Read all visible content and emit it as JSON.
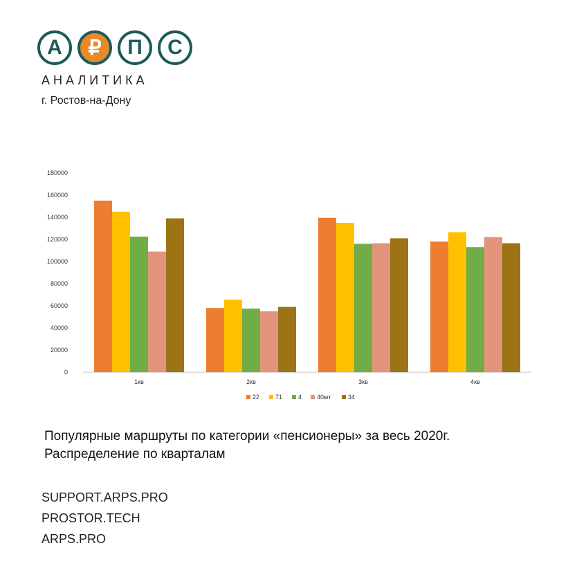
{
  "brand": {
    "letters": [
      "А",
      "₽",
      "П",
      "С"
    ],
    "subtitle": "АНАЛИТИКА",
    "city": "г. Ростов-на-Дону",
    "colors": {
      "teal": "#1d5a5a",
      "orange": "#e8892a"
    }
  },
  "caption": {
    "line1": "Популярные маршруты по категории «пенсионеры» за весь 2020г.",
    "line2": "Распределение по кварталам"
  },
  "links": [
    "SUPPORT.ARPS.PRO",
    "PROSTOR.TECH",
    "ARPS.PRO"
  ],
  "chart_data": {
    "type": "bar",
    "categories": [
      "1кв",
      "2кв",
      "3кв",
      "4кв"
    ],
    "series": [
      {
        "name": "22",
        "color": "#ed7d31",
        "values": [
          155000,
          58000,
          139500,
          118000
        ]
      },
      {
        "name": "71",
        "color": "#ffc000",
        "values": [
          145000,
          65500,
          135000,
          126500
        ]
      },
      {
        "name": "4",
        "color": "#70ad47",
        "values": [
          122500,
          57500,
          116000,
          113000
        ]
      },
      {
        "name": "40мт",
        "color": "#e2947d",
        "values": [
          109000,
          55000,
          116500,
          122000
        ]
      },
      {
        "name": "34",
        "color": "#9c7416",
        "values": [
          139000,
          59000,
          121000,
          116500
        ]
      }
    ],
    "yticks": [
      "0",
      "20000",
      "40000",
      "60000",
      "80000",
      "100000",
      "120000",
      "140000",
      "160000",
      "180000"
    ],
    "ylim": [
      0,
      180000
    ],
    "legend": "bottom",
    "grid": false
  }
}
